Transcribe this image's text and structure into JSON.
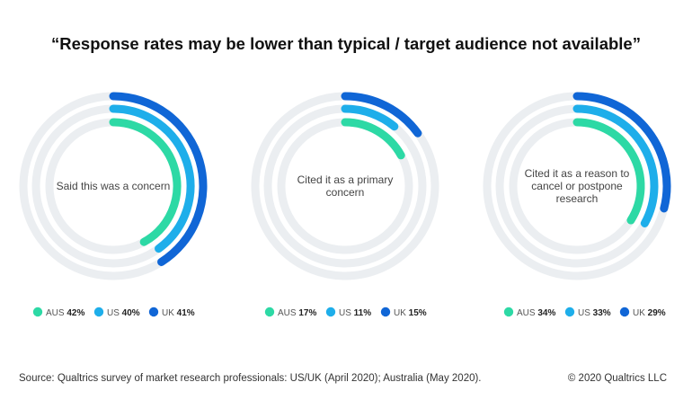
{
  "title": "“Response rates may be lower than typical / target audience not available”",
  "footer": {
    "source": "Source: Qualtrics survey of market research professionals: US/UK (April 2020); Australia (May 2020).",
    "copyright": "© 2020 Qualtrics LLC"
  },
  "colors": {
    "track": "#ebeef1",
    "AUS": "#2dd9a5",
    "US": "#1eaeea",
    "UK": "#1066d6"
  },
  "chart_data": [
    {
      "type": "radial-bar",
      "center_label": [
        "Said this was a concern"
      ],
      "categories": [
        "AUS",
        "US",
        "UK"
      ],
      "values": [
        42,
        40,
        41
      ],
      "value_labels": [
        "42%",
        "40%",
        "41%"
      ]
    },
    {
      "type": "radial-bar",
      "center_label": [
        "Cited it as a primary",
        "concern"
      ],
      "categories": [
        "AUS",
        "US",
        "UK"
      ],
      "values": [
        17,
        11,
        15
      ],
      "value_labels": [
        "17%",
        "11%",
        "15%"
      ]
    },
    {
      "type": "radial-bar",
      "center_label": [
        "Cited it as a  reason to",
        "cancel or postpone",
        "research"
      ],
      "categories": [
        "AUS",
        "US",
        "UK"
      ],
      "values": [
        34,
        33,
        29
      ],
      "value_labels": [
        "34%",
        "33%",
        "29%"
      ]
    }
  ]
}
